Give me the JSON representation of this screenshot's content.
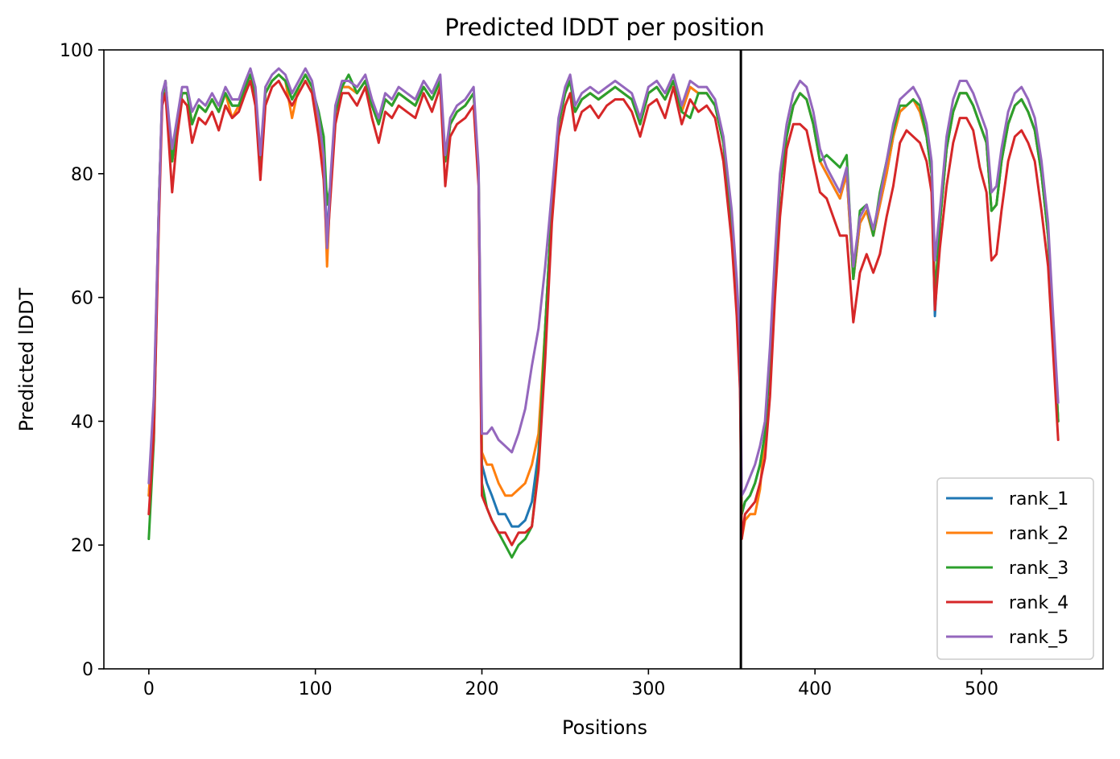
{
  "chart_data": {
    "type": "line",
    "title": "Predicted lDDT per position",
    "xlabel": "Positions",
    "ylabel": "Predicted lDDT",
    "xlim": [
      -27,
      573
    ],
    "ylim": [
      0,
      100
    ],
    "xticks": [
      0,
      100,
      200,
      300,
      400,
      500
    ],
    "yticks": [
      0,
      20,
      40,
      60,
      80,
      100
    ],
    "xtick_labels": [
      "0",
      "100",
      "200",
      "300",
      "400",
      "500"
    ],
    "ytick_labels": [
      "0",
      "20",
      "40",
      "60",
      "80",
      "100"
    ],
    "vline_x": 355.5,
    "grid": false,
    "legend_position": "lower-right",
    "series": [
      {
        "name": "rank_1",
        "color": "#1f77b4"
      },
      {
        "name": "rank_2",
        "color": "#ff7f0e"
      },
      {
        "name": "rank_3",
        "color": "#2ca02c"
      },
      {
        "name": "rank_4",
        "color": "#d62728"
      },
      {
        "name": "rank_5",
        "color": "#9467bd"
      }
    ],
    "x": [
      0,
      3,
      6,
      8,
      10,
      12,
      14,
      17,
      20,
      23,
      26,
      30,
      34,
      38,
      42,
      46,
      50,
      54,
      58,
      61,
      64,
      67,
      70,
      74,
      78,
      82,
      86,
      90,
      94,
      98,
      102,
      105,
      107,
      109,
      112,
      116,
      120,
      125,
      130,
      134,
      138,
      142,
      146,
      150,
      155,
      160,
      165,
      170,
      175,
      178,
      181,
      185,
      190,
      195,
      198,
      200,
      203,
      206,
      210,
      214,
      218,
      222,
      226,
      230,
      234,
      238,
      242,
      246,
      250,
      253,
      256,
      260,
      265,
      270,
      275,
      280,
      285,
      290,
      295,
      300,
      305,
      310,
      315,
      320,
      325,
      330,
      335,
      340,
      345,
      350,
      353,
      355,
      356,
      358,
      361,
      364,
      367,
      370,
      373,
      376,
      379,
      383,
      387,
      391,
      395,
      399,
      403,
      407,
      411,
      415,
      419,
      423,
      427,
      431,
      435,
      439,
      443,
      447,
      451,
      455,
      459,
      463,
      467,
      470,
      472,
      475,
      479,
      483,
      487,
      491,
      495,
      499,
      503,
      506,
      509,
      512,
      516,
      520,
      524,
      528,
      532,
      536,
      540,
      543,
      546
    ],
    "base_values": [
      28,
      42,
      75,
      92,
      95,
      88,
      82,
      88,
      93,
      93,
      88,
      91,
      90,
      92,
      90,
      93,
      91,
      91,
      94,
      96,
      93,
      82,
      93,
      95,
      96,
      95,
      92,
      94,
      96,
      94,
      88,
      82,
      70,
      78,
      90,
      94,
      94,
      93,
      95,
      91,
      88,
      92,
      91,
      93,
      92,
      91,
      94,
      92,
      95,
      82,
      88,
      90,
      91,
      93,
      80,
      30,
      28,
      27,
      25,
      24,
      23,
      24,
      24,
      25,
      35,
      55,
      75,
      88,
      93,
      95,
      90,
      92,
      93,
      92,
      93,
      94,
      93,
      92,
      88,
      93,
      94,
      92,
      95,
      90,
      94,
      93,
      93,
      91,
      85,
      72,
      60,
      48,
      25,
      27,
      28,
      30,
      33,
      38,
      50,
      65,
      78,
      86,
      91,
      93,
      92,
      88,
      82,
      80,
      78,
      76,
      80,
      63,
      72,
      74,
      70,
      75,
      80,
      86,
      90,
      91,
      92,
      90,
      86,
      80,
      60,
      72,
      84,
      90,
      93,
      93,
      91,
      88,
      85,
      74,
      75,
      82,
      88,
      91,
      92,
      90,
      87,
      80,
      70,
      55,
      40
    ],
    "offsets": {
      "rank_1": [
        0,
        0,
        0,
        0,
        0,
        0,
        0,
        0,
        0,
        0,
        0,
        0,
        0,
        0,
        0,
        0,
        0,
        0,
        0,
        0,
        0,
        0,
        0,
        0,
        0,
        0,
        0,
        0,
        0,
        0,
        0,
        0,
        0,
        0,
        0,
        0,
        0,
        0,
        0,
        0,
        0,
        0,
        0,
        0,
        0,
        0,
        0,
        0,
        0,
        0,
        0,
        0,
        0,
        0,
        0,
        3,
        2,
        1,
        0,
        1,
        0,
        -1,
        0,
        2,
        0,
        0,
        0,
        0,
        0,
        0,
        0,
        0,
        0,
        0,
        0,
        0,
        0,
        0,
        0,
        0,
        0,
        0,
        0,
        0,
        0,
        0,
        0,
        0,
        0,
        0,
        0,
        0,
        0,
        0,
        0,
        0,
        0,
        0,
        0,
        0,
        0,
        0,
        0,
        0,
        0,
        0,
        0,
        0,
        0,
        0,
        0,
        0,
        0,
        0,
        0,
        0,
        0,
        0,
        0,
        0,
        0,
        0,
        0,
        0,
        -3,
        0,
        0,
        0,
        0,
        0,
        0,
        0,
        0,
        0,
        0,
        0,
        0,
        0,
        0,
        0,
        0,
        0,
        0,
        0,
        0
      ],
      "rank_2": [
        0,
        0,
        0,
        0,
        0,
        0,
        0,
        0,
        0,
        0,
        0,
        0,
        0,
        0,
        0,
        0,
        -2,
        0,
        0,
        0,
        0,
        0,
        0,
        0,
        0,
        0,
        -3,
        0,
        0,
        0,
        0,
        0,
        -5,
        0,
        0,
        0,
        0,
        0,
        0,
        0,
        0,
        0,
        0,
        0,
        0,
        0,
        0,
        0,
        0,
        0,
        0,
        0,
        0,
        0,
        0,
        5,
        5,
        6,
        5,
        4,
        5,
        5,
        6,
        8,
        3,
        0,
        0,
        0,
        0,
        0,
        0,
        0,
        0,
        0,
        0,
        0,
        0,
        0,
        0,
        0,
        0,
        0,
        0,
        0,
        0,
        0,
        0,
        0,
        0,
        0,
        0,
        0,
        -4,
        -3,
        -3,
        -5,
        -4,
        0,
        0,
        0,
        0,
        0,
        0,
        0,
        0,
        0,
        0,
        0,
        0,
        0,
        0,
        0,
        0,
        0,
        0,
        0,
        0,
        0,
        0,
        0,
        0,
        0,
        0,
        0,
        0,
        0,
        0,
        0,
        0,
        0,
        0,
        0,
        0,
        0,
        0,
        0,
        0,
        0,
        0,
        0,
        0,
        0,
        0,
        0,
        0
      ],
      "rank_3": [
        -7,
        -5,
        0,
        0,
        0,
        0,
        0,
        0,
        0,
        0,
        0,
        0,
        0,
        0,
        0,
        0,
        0,
        0,
        0,
        0,
        0,
        0,
        0,
        0,
        0,
        0,
        0,
        0,
        0,
        0,
        2,
        4,
        5,
        0,
        0,
        0,
        2,
        0,
        0,
        0,
        0,
        0,
        0,
        0,
        0,
        0,
        0,
        0,
        0,
        0,
        0,
        0,
        0,
        0,
        0,
        0,
        -2,
        -3,
        -3,
        -4,
        -5,
        -4,
        -3,
        -2,
        -2,
        0,
        0,
        0,
        0,
        0,
        0,
        0,
        0,
        0,
        0,
        0,
        0,
        0,
        0,
        0,
        0,
        0,
        0,
        0,
        -5,
        0,
        0,
        0,
        0,
        0,
        0,
        0,
        0,
        0,
        0,
        0,
        0,
        0,
        0,
        0,
        0,
        0,
        0,
        0,
        0,
        0,
        0,
        3,
        4,
        5,
        3,
        0,
        2,
        1,
        0,
        2,
        2,
        1,
        1,
        0,
        0,
        1,
        0,
        0,
        0,
        0,
        0,
        0,
        0,
        0,
        0,
        0,
        0,
        0,
        0,
        0,
        0,
        0,
        0,
        0,
        0,
        0,
        0,
        0,
        0
      ],
      "rank_4": [
        -3,
        -4,
        -3,
        -1,
        -2,
        -3,
        -5,
        -2,
        -1,
        -2,
        -3,
        -2,
        -2,
        -2,
        -3,
        -2,
        -2,
        -1,
        -1,
        -1,
        -2,
        -3,
        -2,
        -1,
        -1,
        -2,
        -1,
        -1,
        -1,
        -1,
        -2,
        -3,
        -2,
        -2,
        -2,
        -1,
        -1,
        -2,
        -1,
        -2,
        -3,
        -2,
        -2,
        -2,
        -2,
        -2,
        -1,
        -2,
        -1,
        -4,
        -2,
        -2,
        -2,
        -2,
        -2,
        -2,
        -2,
        -3,
        -3,
        -2,
        -3,
        -2,
        -2,
        -2,
        -3,
        -5,
        -3,
        -2,
        -2,
        -2,
        -3,
        -2,
        -2,
        -3,
        -2,
        -2,
        -1,
        -2,
        -2,
        -2,
        -2,
        -3,
        -1,
        -2,
        -2,
        -3,
        -2,
        -2,
        -3,
        -3,
        -3,
        -3,
        -4,
        -2,
        -2,
        -3,
        -3,
        -4,
        -6,
        -5,
        -5,
        -2,
        -3,
        -5,
        -5,
        -6,
        -5,
        -4,
        -5,
        -6,
        -10,
        -7,
        -8,
        -7,
        -6,
        -8,
        -7,
        -8,
        -5,
        -4,
        -6,
        -5,
        -4,
        -3,
        -2,
        -4,
        -6,
        -5,
        -4,
        -4,
        -4,
        -7,
        -8,
        -8,
        -8,
        -8,
        -6,
        -5,
        -5,
        -5,
        -5,
        -6,
        -5,
        -4,
        -3
      ],
      "rank_5": [
        2,
        2,
        0,
        1,
        0,
        1,
        2,
        1,
        1,
        1,
        2,
        1,
        1,
        1,
        1,
        1,
        1,
        1,
        1,
        1,
        1,
        1,
        1,
        1,
        1,
        1,
        1,
        1,
        1,
        1,
        1,
        1,
        -2,
        1,
        1,
        1,
        1,
        1,
        1,
        1,
        1,
        1,
        1,
        1,
        1,
        1,
        1,
        1,
        1,
        1,
        1,
        1,
        1,
        1,
        1,
        8,
        10,
        12,
        12,
        12,
        12,
        14,
        18,
        24,
        20,
        10,
        2,
        1,
        1,
        1,
        1,
        1,
        1,
        1,
        1,
        1,
        1,
        1,
        1,
        1,
        1,
        1,
        1,
        1,
        1,
        1,
        1,
        1,
        1,
        2,
        3,
        5,
        3,
        2,
        3,
        3,
        3,
        2,
        2,
        2,
        2,
        2,
        2,
        2,
        2,
        2,
        2,
        1,
        1,
        1,
        1,
        2,
        1,
        1,
        1,
        1,
        2,
        2,
        2,
        2,
        2,
        2,
        2,
        2,
        6,
        2,
        2,
        2,
        2,
        2,
        2,
        2,
        2,
        3,
        3,
        2,
        2,
        2,
        2,
        2,
        2,
        2,
        2,
        2,
        3
      ]
    }
  }
}
